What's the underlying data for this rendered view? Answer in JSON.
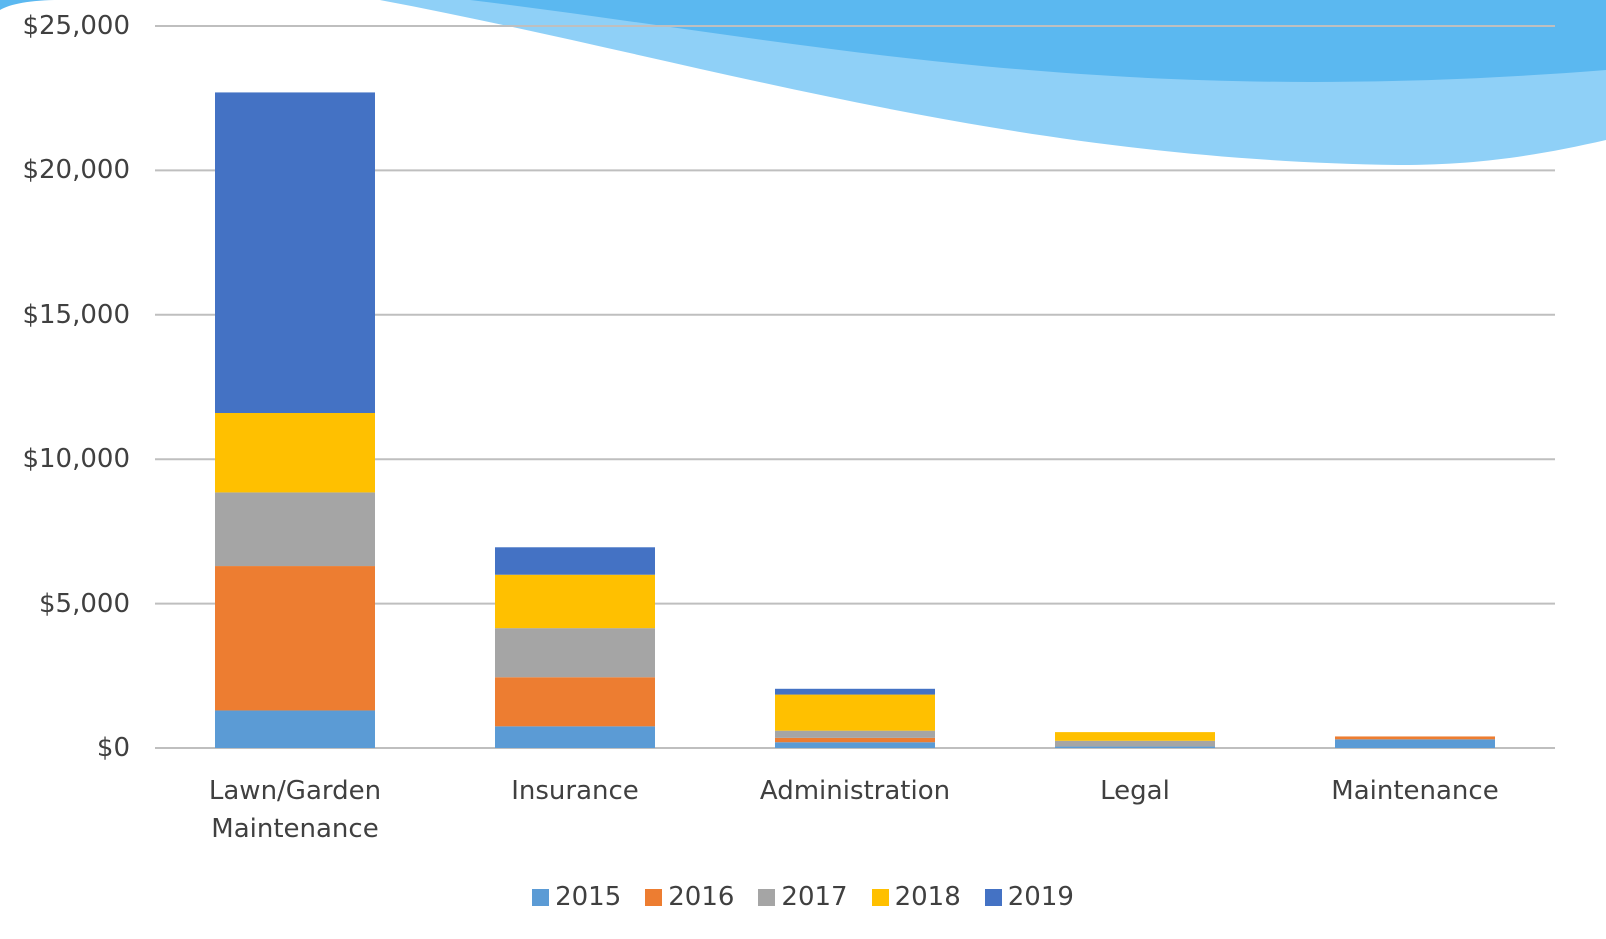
{
  "chart_data": {
    "type": "stacked-bar",
    "categories": [
      "Lawn/Garden Maintenance",
      "Insurance",
      "Administration",
      "Legal",
      "Maintenance"
    ],
    "series": [
      {
        "name": "2015",
        "color": "#5b9bd5",
        "values": [
          1300,
          750,
          200,
          50,
          300
        ]
      },
      {
        "name": "2016",
        "color": "#ed7d31",
        "values": [
          5000,
          1700,
          150,
          0,
          100
        ]
      },
      {
        "name": "2017",
        "color": "#a5a5a5",
        "values": [
          2550,
          1700,
          250,
          200,
          0
        ]
      },
      {
        "name": "2018",
        "color": "#ffc000",
        "values": [
          2750,
          1850,
          1250,
          300,
          0
        ]
      },
      {
        "name": "2019",
        "color": "#4472c4",
        "values": [
          11100,
          950,
          200,
          0,
          0
        ]
      }
    ],
    "ylim": [
      0,
      25000
    ],
    "yticks": [
      {
        "value": 0,
        "label": "$0"
      },
      {
        "value": 5000,
        "label": "$5,000"
      },
      {
        "value": 10000,
        "label": "$10,000"
      },
      {
        "value": 15000,
        "label": "$15,000"
      },
      {
        "value": 20000,
        "label": "$20,000"
      },
      {
        "value": 25000,
        "label": "$25,000"
      }
    ],
    "grid": true,
    "legend": "bottom"
  }
}
